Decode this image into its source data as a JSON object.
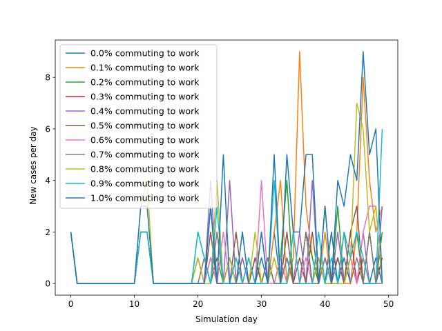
{
  "chart_data": {
    "type": "line",
    "xlabel": "Simulation day",
    "ylabel": "New cases per day",
    "xlim": [
      -2.45,
      51.45
    ],
    "ylim": [
      -0.45,
      9.45
    ],
    "xticks": [
      0,
      10,
      20,
      30,
      40,
      50
    ],
    "yticks": [
      0,
      2,
      4,
      6,
      8
    ],
    "grid": false,
    "legend_position": "upper-left",
    "x": [
      0,
      1,
      2,
      3,
      4,
      5,
      6,
      7,
      8,
      9,
      10,
      11,
      12,
      13,
      14,
      15,
      16,
      17,
      18,
      19,
      20,
      21,
      22,
      23,
      24,
      25,
      26,
      27,
      28,
      29,
      30,
      31,
      32,
      33,
      34,
      35,
      36,
      37,
      38,
      39,
      40,
      41,
      42,
      43,
      44,
      45,
      46,
      47,
      48,
      49
    ],
    "series": [
      {
        "name": "0.0% commuting to work",
        "color": "#1f77b4",
        "values": [
          2,
          0,
          0,
          0,
          0,
          0,
          0,
          0,
          0,
          0,
          0,
          2,
          2,
          0,
          0,
          0,
          0,
          0,
          0,
          0,
          1,
          0,
          3,
          0,
          0,
          0,
          0,
          1,
          0,
          0,
          1,
          0,
          2,
          0,
          1,
          0,
          0,
          2,
          0,
          1,
          0,
          2,
          0,
          1,
          0,
          2,
          0,
          0,
          1,
          0
        ]
      },
      {
        "name": "0.1% commuting to work",
        "color": "#ff7f0e",
        "values": [
          2,
          0,
          0,
          0,
          0,
          0,
          0,
          0,
          0,
          0,
          0,
          2,
          2,
          0,
          0,
          0,
          0,
          0,
          0,
          0,
          0,
          1,
          0,
          2,
          0,
          0,
          1,
          0,
          0,
          1,
          0,
          0,
          2,
          4,
          0,
          1,
          9,
          3,
          1,
          0,
          2,
          0,
          1,
          0,
          0,
          2,
          8,
          4,
          2,
          3
        ]
      },
      {
        "name": "0.2% commuting to work",
        "color": "#2ca02c",
        "values": [
          2,
          0,
          0,
          0,
          0,
          0,
          0,
          0,
          0,
          0,
          0,
          2,
          2,
          0,
          0,
          0,
          0,
          0,
          0,
          0,
          2,
          1,
          0,
          1,
          0,
          1,
          0,
          0,
          0,
          1,
          0,
          1,
          0,
          1,
          4,
          0,
          0,
          2,
          1,
          0,
          3,
          0,
          3,
          0,
          1,
          2,
          0,
          2,
          0,
          2
        ]
      },
      {
        "name": "0.3% commuting to work",
        "color": "#d62728",
        "values": [
          2,
          0,
          0,
          0,
          0,
          0,
          0,
          0,
          0,
          0,
          0,
          2,
          2,
          0,
          0,
          0,
          0,
          0,
          0,
          0,
          0,
          0,
          1,
          0,
          0,
          1,
          0,
          0,
          1,
          0,
          0,
          1,
          0,
          0,
          1,
          0,
          0,
          2,
          0,
          1,
          0,
          0,
          1,
          0,
          2,
          0,
          1,
          0,
          0,
          1
        ]
      },
      {
        "name": "0.4% commuting to work",
        "color": "#9467bd",
        "values": [
          2,
          0,
          0,
          0,
          0,
          0,
          0,
          0,
          0,
          0,
          0,
          2,
          2,
          0,
          0,
          0,
          0,
          0,
          0,
          0,
          1,
          0,
          4,
          0,
          0,
          4,
          0,
          1,
          0,
          0,
          2,
          0,
          1,
          0,
          1,
          0,
          2,
          0,
          4,
          0,
          1,
          0,
          2,
          0,
          1,
          0,
          2,
          0,
          0,
          3
        ]
      },
      {
        "name": "0.5% commuting to work",
        "color": "#8c564b",
        "values": [
          2,
          0,
          0,
          0,
          0,
          0,
          0,
          0,
          0,
          0,
          0,
          2,
          2,
          0,
          0,
          0,
          0,
          0,
          0,
          0,
          0,
          0,
          2,
          0,
          0,
          0,
          2,
          0,
          0,
          1,
          0,
          1,
          0,
          0,
          2,
          0,
          1,
          0,
          2,
          0,
          1,
          0,
          1,
          0,
          2,
          3,
          0,
          2,
          0,
          1
        ]
      },
      {
        "name": "0.6% commuting to work",
        "color": "#e377c2",
        "values": [
          2,
          0,
          0,
          0,
          0,
          0,
          0,
          0,
          0,
          0,
          0,
          2,
          2,
          0,
          0,
          0,
          0,
          0,
          0,
          0,
          0,
          0,
          1,
          0,
          2,
          0,
          1,
          0,
          0,
          0,
          4,
          0,
          0,
          1,
          0,
          2,
          0,
          1,
          0,
          0,
          1,
          0,
          0,
          2,
          1,
          0,
          2,
          3,
          3,
          0
        ]
      },
      {
        "name": "0.7% commuting to work",
        "color": "#7f7f7f",
        "values": [
          2,
          0,
          0,
          0,
          0,
          0,
          0,
          0,
          0,
          0,
          0,
          2,
          2,
          0,
          0,
          0,
          0,
          0,
          0,
          0,
          0,
          1,
          0,
          2,
          0,
          1,
          0,
          0,
          1,
          0,
          0,
          1,
          0,
          0,
          1,
          0,
          0,
          2,
          0,
          0,
          1,
          0,
          0,
          2,
          0,
          1,
          0,
          2,
          0,
          0
        ]
      },
      {
        "name": "0.8% commuting to work",
        "color": "#bcbd22",
        "values": [
          2,
          0,
          0,
          0,
          0,
          0,
          0,
          0,
          0,
          0,
          0,
          3,
          4,
          0,
          0,
          0,
          0,
          0,
          0,
          0,
          1,
          0,
          0,
          4,
          0,
          1,
          0,
          2,
          0,
          2,
          0,
          0,
          1,
          0,
          0,
          2,
          0,
          0,
          0,
          1,
          0,
          0,
          0,
          0,
          1,
          7,
          6,
          2,
          3,
          0
        ]
      },
      {
        "name": "0.9% commuting to work",
        "color": "#17becf",
        "values": [
          2,
          0,
          0,
          0,
          0,
          0,
          0,
          0,
          0,
          0,
          0,
          2,
          2,
          0,
          0,
          0,
          0,
          0,
          0,
          0,
          2,
          1,
          0,
          3,
          0,
          0,
          1,
          0,
          1,
          0,
          0,
          0,
          4,
          0,
          0,
          2,
          0,
          0,
          0,
          2,
          0,
          1,
          0,
          2,
          1,
          2,
          1,
          0,
          0,
          6
        ]
      },
      {
        "name": "1.0% commuting to work",
        "color": "#1f77b4",
        "values": [
          2,
          0,
          0,
          0,
          0,
          0,
          0,
          0,
          0,
          0,
          0,
          3,
          3,
          0,
          0,
          0,
          0,
          0,
          0,
          0,
          0,
          0,
          3,
          0,
          5,
          0,
          0,
          2,
          0,
          0,
          2,
          0,
          5,
          0,
          5,
          2,
          2,
          5,
          5,
          0,
          3,
          0,
          4,
          3,
          5,
          4,
          9,
          5,
          6,
          0
        ]
      }
    ]
  }
}
